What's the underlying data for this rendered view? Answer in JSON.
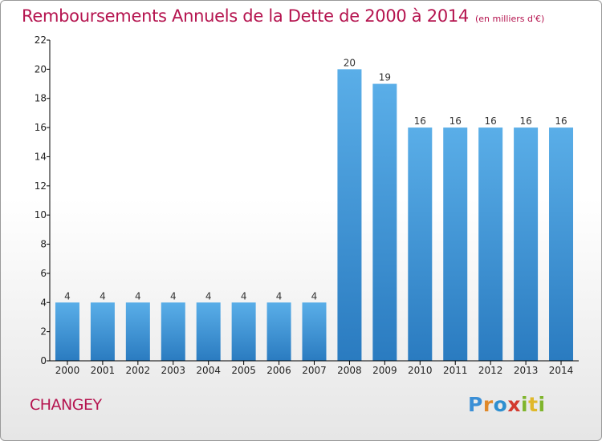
{
  "title": "Remboursements Annuels de la Dette de 2000 à 2014",
  "subtitle": "(en milliers d'€)",
  "commune": "CHANGEY",
  "logo_text": "Proxiti",
  "colors": {
    "title": "#b5144f",
    "bar_top": "#5aaee8",
    "bar_bottom": "#2a7bc0",
    "axis": "#000000"
  },
  "chart_data": {
    "type": "bar",
    "title": "Remboursements Annuels de la Dette de 2000 à 2014",
    "subtitle": "(en milliers d'€)",
    "categories": [
      "2000",
      "2001",
      "2002",
      "2003",
      "2004",
      "2005",
      "2006",
      "2007",
      "2008",
      "2009",
      "2010",
      "2011",
      "2012",
      "2013",
      "2014"
    ],
    "values": [
      4,
      4,
      4,
      4,
      4,
      4,
      4,
      4,
      20,
      19,
      16,
      16,
      16,
      16,
      16
    ],
    "ylim": [
      0,
      22
    ],
    "yticks": [
      0,
      2,
      4,
      6,
      8,
      10,
      12,
      14,
      16,
      18,
      20,
      22
    ],
    "grid": false,
    "legend": "none"
  }
}
